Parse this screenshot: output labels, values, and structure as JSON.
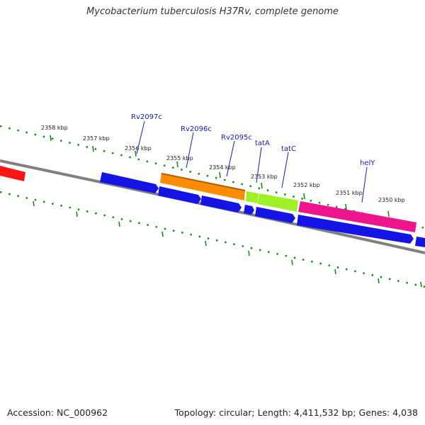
{
  "title": "Mycobacterium tuberculosis H37Rv, complete genome",
  "footer": {
    "accession": "Accession: NC_000962",
    "topology": "Topology: circular; Length: 4,411,532 bp; Genes: 4,038"
  },
  "colors": {
    "backbone": "#808080",
    "tick": "#1a8a1a",
    "label_line": "#1a1ab4",
    "gene_blue": "#1414e6",
    "gene_orange": "#ff8c00",
    "gene_green": "#a0f028",
    "gene_magenta": "#f0148c",
    "gene_red": "#ff1414"
  },
  "scale_labels": [
    "2358 kbp",
    "2357 kbp",
    "2356 kbp",
    "2355 kbp",
    "2354 kbp",
    "2353 kbp",
    "2352 kbp",
    "2351 kbp",
    "2350 kbp"
  ],
  "gene_labels": [
    "Rv2097c",
    "Rv2096c",
    "Rv2095c",
    "tatA",
    "tatC",
    "helY"
  ]
}
